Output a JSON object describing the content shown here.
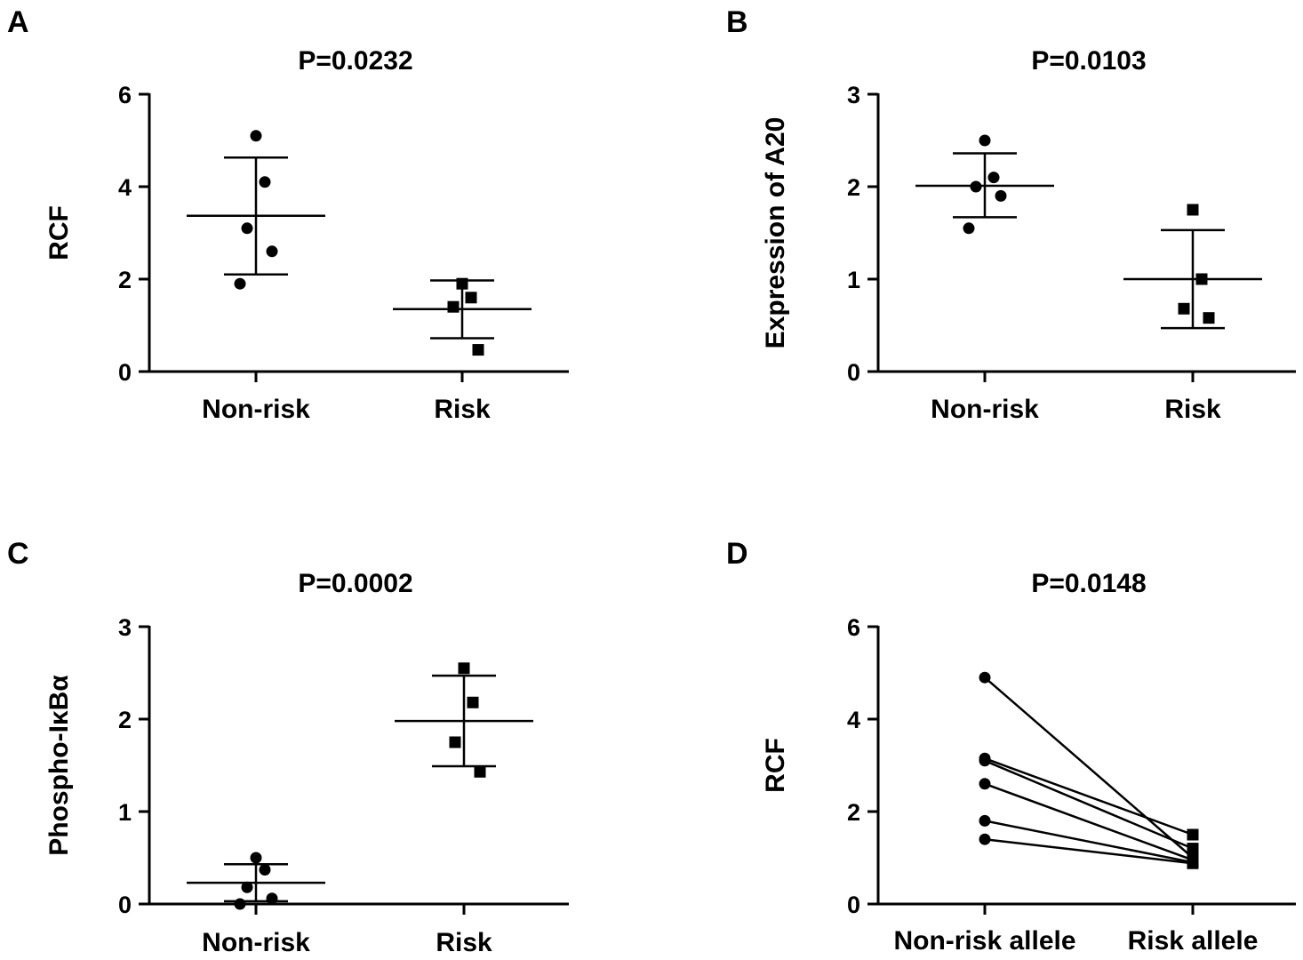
{
  "chart_data": [
    {
      "panel": "A",
      "type": "scatter",
      "title": "P=0.0232",
      "ylabel": "RCF",
      "categories": [
        "Non-risk",
        "Risk"
      ],
      "ylim": [
        0,
        6
      ],
      "yticks": [
        0,
        2,
        4,
        6
      ],
      "series": [
        {
          "category": "Non-risk",
          "marker": "circle",
          "values": [
            5.1,
            4.1,
            3.1,
            2.6,
            1.9
          ],
          "mean": 3.37,
          "sd_upper": 4.63,
          "sd_lower": 2.1
        },
        {
          "category": "Risk",
          "marker": "square",
          "values": [
            1.9,
            1.6,
            1.4,
            0.47
          ],
          "mean": 1.35,
          "sd_upper": 1.97,
          "sd_lower": 0.72
        }
      ]
    },
    {
      "panel": "B",
      "type": "scatter",
      "title": "P=0.0103",
      "ylabel": "Expression of A20",
      "categories": [
        "Non-risk",
        "Risk"
      ],
      "ylim": [
        0,
        3
      ],
      "yticks": [
        0,
        1,
        2,
        3
      ],
      "series": [
        {
          "category": "Non-risk",
          "marker": "circle",
          "values": [
            2.5,
            2.1,
            2.0,
            1.9,
            1.55
          ],
          "mean": 2.01,
          "sd_upper": 2.36,
          "sd_lower": 1.67
        },
        {
          "category": "Risk",
          "marker": "square",
          "values": [
            1.75,
            1.0,
            0.68,
            0.58
          ],
          "mean": 1.0,
          "sd_upper": 1.53,
          "sd_lower": 0.47
        }
      ]
    },
    {
      "panel": "C",
      "type": "scatter",
      "title": "P=0.0002",
      "ylabel": "Phospho-IκBα",
      "categories": [
        "Non-risk",
        "Risk"
      ],
      "ylim": [
        0,
        3
      ],
      "yticks": [
        0,
        1,
        2,
        3
      ],
      "series": [
        {
          "category": "Non-risk",
          "marker": "circle",
          "values": [
            0.5,
            0.37,
            0.18,
            0.06,
            0.0
          ],
          "mean": 0.23,
          "sd_upper": 0.43,
          "sd_lower": 0.03
        },
        {
          "category": "Risk",
          "marker": "square",
          "values": [
            2.55,
            2.18,
            1.75,
            1.43
          ],
          "mean": 1.98,
          "sd_upper": 2.47,
          "sd_lower": 1.49
        }
      ]
    },
    {
      "panel": "D",
      "type": "line",
      "title": "P=0.0148",
      "ylabel": "RCF",
      "categories": [
        "Non-risk allele",
        "Risk allele"
      ],
      "ylim": [
        0,
        6
      ],
      "yticks": [
        0,
        2,
        4,
        6
      ],
      "pairs": [
        {
          "values": [
            4.9,
            1.0
          ]
        },
        {
          "values": [
            3.15,
            1.5
          ]
        },
        {
          "values": [
            3.1,
            1.2
          ]
        },
        {
          "values": [
            2.6,
            0.95
          ]
        },
        {
          "values": [
            1.8,
            0.9
          ]
        },
        {
          "values": [
            1.4,
            0.88
          ]
        }
      ]
    }
  ]
}
